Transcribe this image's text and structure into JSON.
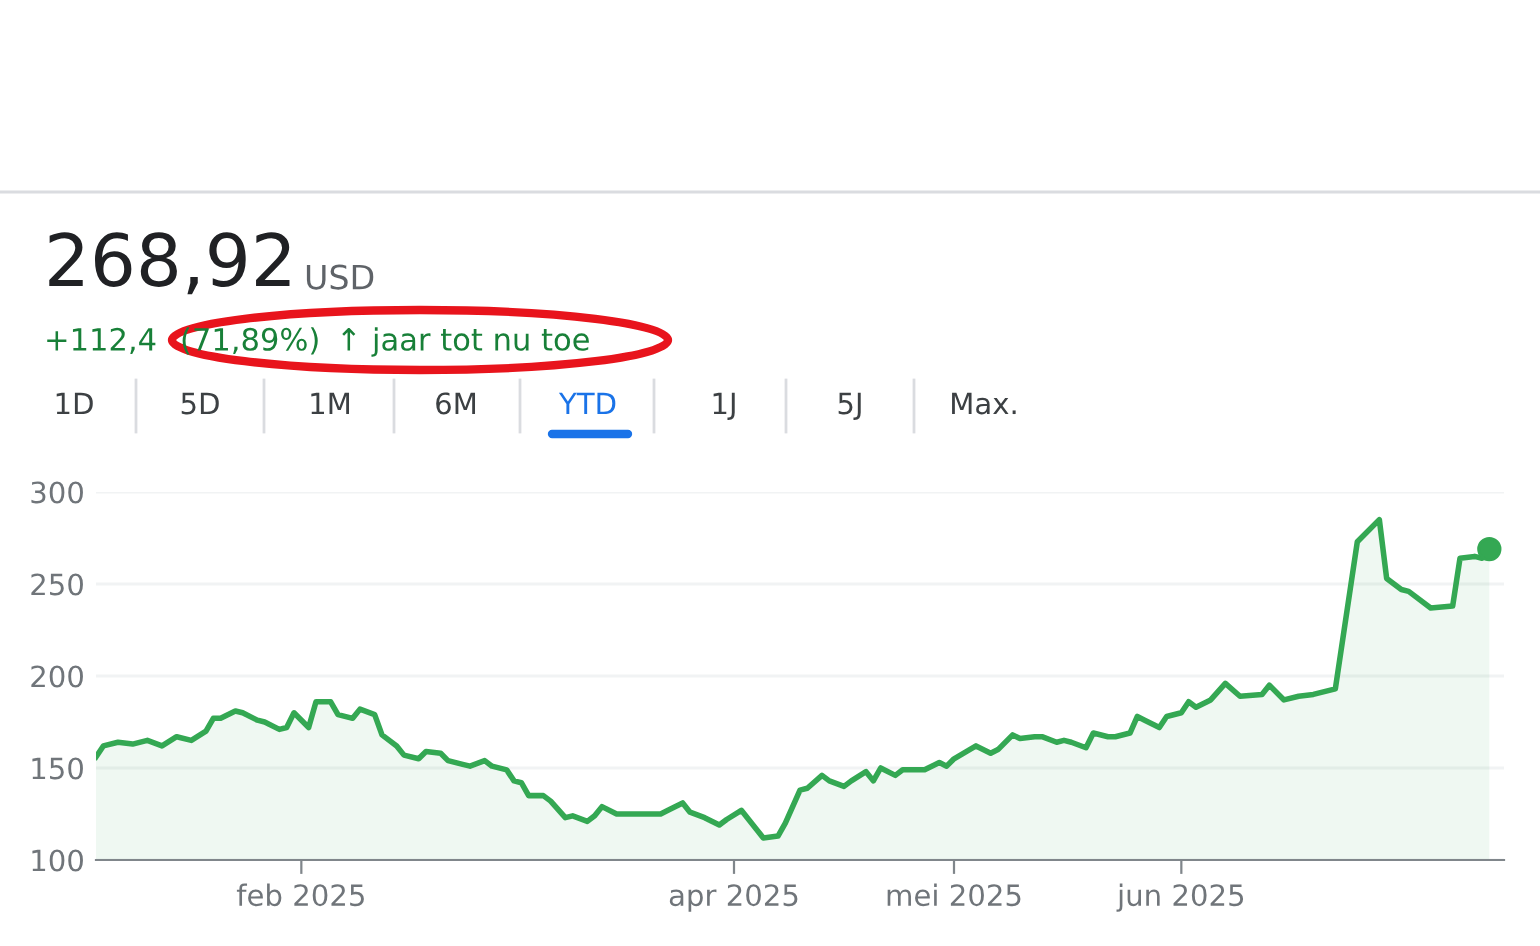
{
  "chart_data": {
    "type": "area",
    "annotations": [
      "268,92",
      "USD",
      "+112,4",
      "(71,89%)",
      "↑",
      "jaar tot nu toe",
      "1D",
      "5D",
      "1M",
      "6M",
      "YTD",
      "1J",
      "5J",
      "Max."
    ],
    "x": [
      "2025-01-04",
      "2025-01-05",
      "2025-01-07",
      "2025-01-09",
      "2025-01-11",
      "2025-01-13",
      "2025-01-15",
      "2025-01-17",
      "2025-01-19",
      "2025-01-20",
      "2025-01-21",
      "2025-01-23",
      "2025-01-24",
      "2025-01-26",
      "2025-01-27",
      "2025-01-29",
      "2025-01-30",
      "2025-01-31",
      "2025-02-02",
      "2025-02-03",
      "2025-02-05",
      "2025-02-06",
      "2025-02-08",
      "2025-02-09",
      "2025-02-11",
      "2025-02-12",
      "2025-02-14",
      "2025-02-15",
      "2025-02-17",
      "2025-02-18",
      "2025-02-20",
      "2025-02-21",
      "2025-02-23",
      "2025-02-24",
      "2025-02-26",
      "2025-02-27",
      "2025-03-01",
      "2025-03-02",
      "2025-03-03",
      "2025-03-04",
      "2025-03-06",
      "2025-03-07",
      "2025-03-09",
      "2025-03-10",
      "2025-03-12",
      "2025-03-13",
      "2025-03-14",
      "2025-03-16",
      "2025-03-18",
      "2025-03-20",
      "2025-03-22",
      "2025-03-23",
      "2025-03-25",
      "2025-03-26",
      "2025-03-28",
      "2025-03-30",
      "2025-03-31",
      "2025-04-02",
      "2025-04-04",
      "2025-04-05",
      "2025-04-07",
      "2025-04-08",
      "2025-04-10",
      "2025-04-11",
      "2025-04-13",
      "2025-04-14",
      "2025-04-16",
      "2025-04-17",
      "2025-04-19",
      "2025-04-20",
      "2025-04-21",
      "2025-04-23",
      "2025-04-24",
      "2025-04-27",
      "2025-04-29",
      "2025-04-30",
      "2025-05-01",
      "2025-05-04",
      "2025-05-06",
      "2025-05-07",
      "2025-05-09",
      "2025-05-10",
      "2025-05-12",
      "2025-05-13",
      "2025-05-15",
      "2025-05-16",
      "2025-05-17",
      "2025-05-19",
      "2025-05-20",
      "2025-05-22",
      "2025-05-23",
      "2025-05-25",
      "2025-05-26",
      "2025-05-27",
      "2025-05-29",
      "2025-05-30",
      "2025-06-01",
      "2025-06-02",
      "2025-06-03",
      "2025-06-05",
      "2025-06-07",
      "2025-06-09",
      "2025-06-12",
      "2025-06-13",
      "2025-06-15",
      "2025-06-17",
      "2025-06-19",
      "2025-06-22",
      "2025-06-25",
      "2025-06-28",
      "2025-06-29",
      "2025-07-01",
      "2025-07-02",
      "2025-07-05",
      "2025-07-08",
      "2025-07-09",
      "2025-07-11",
      "2025-07-12",
      "2025-07-13"
    ],
    "series": [
      {
        "color": "#34a853",
        "values": [
          156,
          162,
          164,
          163,
          165,
          162,
          167,
          165,
          170,
          177,
          177,
          181,
          180,
          176,
          175,
          171,
          172,
          180,
          172,
          186,
          186,
          179,
          177,
          182,
          179,
          168,
          162,
          157,
          155,
          159,
          158,
          154,
          152,
          151,
          154,
          151,
          149,
          143,
          142,
          135,
          135,
          132,
          123,
          124,
          121,
          124,
          129,
          125,
          125,
          125,
          125,
          127,
          131,
          126,
          123,
          119,
          122,
          127,
          117,
          112,
          113,
          120,
          138,
          139,
          146,
          143,
          140,
          143,
          148,
          143,
          150,
          146,
          149,
          149,
          153,
          151,
          155,
          162,
          158,
          160,
          168,
          166,
          167,
          167,
          164,
          165,
          164,
          161,
          169,
          167,
          167,
          169,
          178,
          176,
          172,
          178,
          180,
          186,
          183,
          187,
          196,
          189,
          190,
          195,
          187,
          189,
          190,
          193,
          273,
          285,
          253,
          247,
          246,
          237,
          238,
          264,
          265,
          264,
          269
        ]
      },
      {
        "type": "scatter",
        "color": "#34a853",
        "x": [
          "2025-07-13"
        ],
        "values": [
          269
        ]
      }
    ],
    "xlim": [
      "2025-01-04",
      "2025-07-15"
    ],
    "xticks": [
      {
        "value": "2025-02-01",
        "label": "feb 2025"
      },
      {
        "value": "2025-04-01",
        "label": "apr 2025"
      },
      {
        "value": "2025-05-01",
        "label": "mei 2025"
      },
      {
        "value": "2025-06-01",
        "label": "jun 2025"
      }
    ],
    "ylim": [
      100,
      300
    ],
    "yticks": [
      100,
      150,
      200,
      250,
      300
    ],
    "grid": "y",
    "legend": false
  }
}
